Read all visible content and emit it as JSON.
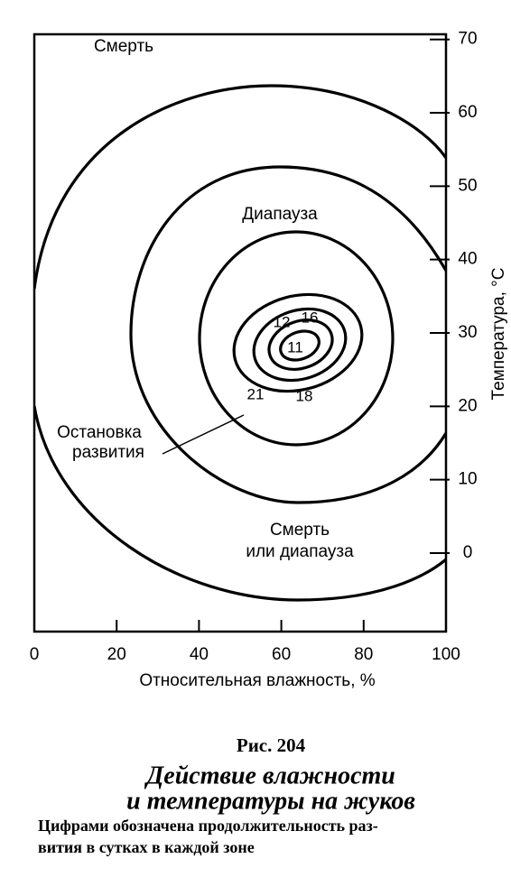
{
  "chart_data": {
    "type": "contour",
    "xlabel": "Относительная влажность, %",
    "ylabel": "Температура, °С",
    "xlim": [
      0,
      100
    ],
    "xticks": [
      0,
      20,
      40,
      60,
      80,
      100
    ],
    "ylim": [
      -10.7,
      70.7
    ],
    "yticks": [
      0,
      10,
      20,
      30,
      40,
      50,
      60,
      70
    ],
    "annotations": [
      "Смерть",
      "Диапауза",
      "Остановка",
      "развития",
      "Смерть",
      "или диапауза"
    ],
    "contour_labels": [
      12,
      16,
      11,
      21,
      18
    ]
  },
  "caption": {
    "number": "Рис. 204",
    "title": [
      "Действие влажности",
      "и температуры на жуков"
    ],
    "note": [
      "Цифрами обозначена продолжительность раз-",
      "вития в сутках в каждой зоне"
    ]
  }
}
